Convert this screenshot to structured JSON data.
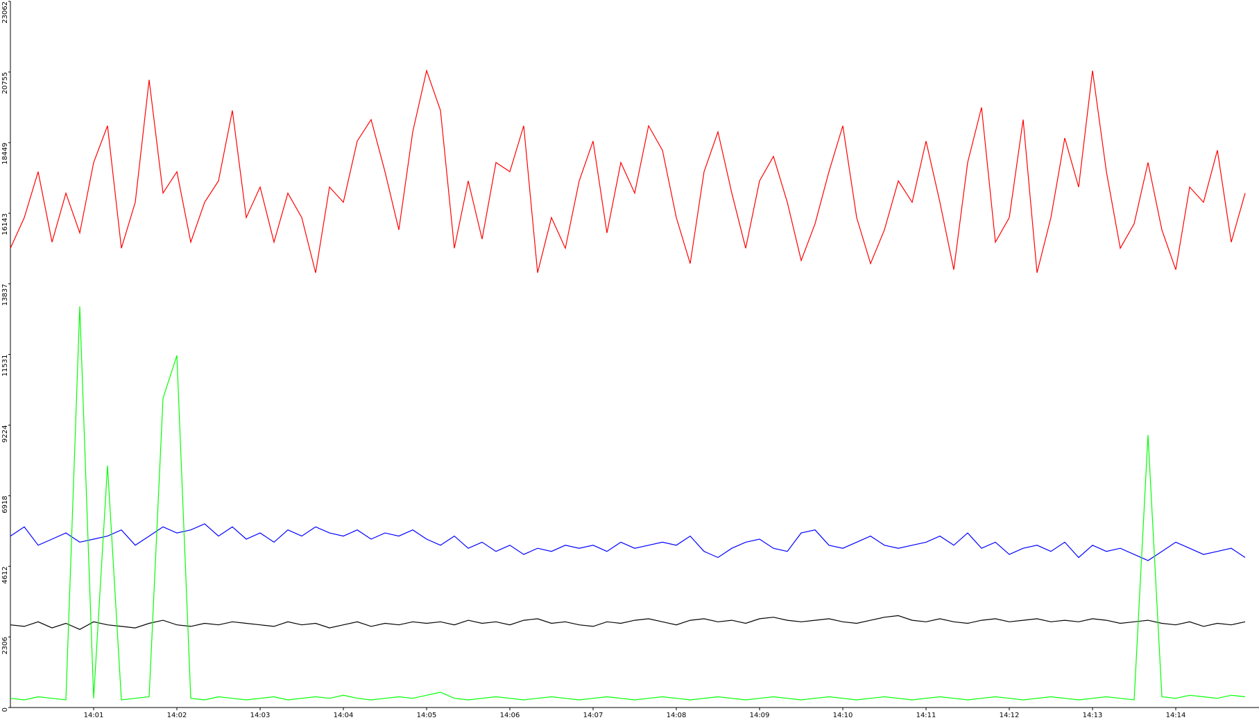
{
  "chart_data": {
    "type": "line",
    "categories": [
      null,
      null,
      null,
      null,
      null,
      null,
      "14:01",
      null,
      null,
      null,
      null,
      null,
      "14:02",
      null,
      null,
      null,
      null,
      null,
      "14:03",
      null,
      null,
      null,
      null,
      null,
      "14:04",
      null,
      null,
      null,
      null,
      null,
      "14:05",
      null,
      null,
      null,
      null,
      null,
      "14:06",
      null,
      null,
      null,
      null,
      null,
      "14:07",
      null,
      null,
      null,
      null,
      null,
      "14:08",
      null,
      null,
      null,
      null,
      null,
      "14:09",
      null,
      null,
      null,
      null,
      null,
      "14:10",
      null,
      null,
      null,
      null,
      null,
      "14:11",
      null,
      null,
      null,
      null,
      null,
      "14:12",
      null,
      null,
      null,
      null,
      null,
      "14:13",
      null,
      null,
      null,
      null,
      null,
      "14:14",
      null,
      null,
      null,
      null,
      null
    ],
    "series": [
      {
        "color": "#ff0000",
        "values": [
          15000,
          16000,
          17500,
          15200,
          16800,
          15500,
          17800,
          19000,
          15000,
          16500,
          20500,
          16800,
          17500,
          15200,
          16500,
          17200,
          19500,
          16000,
          17000,
          15200,
          16800,
          16000,
          14200,
          17000,
          16500,
          18500,
          19200,
          17500,
          15600,
          18800,
          20800,
          19500,
          15000,
          17200,
          15300,
          17800,
          17500,
          19000,
          14200,
          16000,
          15000,
          17200,
          18500,
          15500,
          17800,
          16800,
          19000,
          18200,
          16000,
          14500,
          17500,
          18800,
          16800,
          15000,
          17200,
          18000,
          16500,
          14600,
          15800,
          17500,
          19000,
          16000,
          14500,
          15600,
          17200,
          16500,
          18500,
          16500,
          14300,
          17800,
          19600,
          15200,
          16000,
          19200,
          14200,
          16000,
          18600,
          17000,
          20800,
          17500,
          15000,
          15800,
          17800,
          15600,
          14300,
          17000,
          16500,
          18200,
          15200,
          16800
        ]
      },
      {
        "color": "#0000ff",
        "values": [
          5600,
          5900,
          5300,
          5500,
          5700,
          5400,
          5500,
          5600,
          5800,
          5300,
          5600,
          5900,
          5700,
          5800,
          6000,
          5600,
          5900,
          5500,
          5700,
          5400,
          5800,
          5600,
          5900,
          5700,
          5600,
          5800,
          5500,
          5700,
          5600,
          5800,
          5500,
          5300,
          5600,
          5200,
          5400,
          5100,
          5300,
          5000,
          5200,
          5100,
          5300,
          5200,
          5300,
          5100,
          5400,
          5200,
          5300,
          5400,
          5300,
          5600,
          5100,
          4900,
          5200,
          5400,
          5500,
          5200,
          5100,
          5700,
          5800,
          5300,
          5200,
          5400,
          5600,
          5300,
          5200,
          5300,
          5400,
          5600,
          5300,
          5700,
          5200,
          5400,
          5000,
          5200,
          5300,
          5100,
          5400,
          4900,
          5300,
          5100,
          5200,
          5000,
          4800,
          5100,
          5400,
          5200,
          5000,
          5100,
          5200,
          4900
        ]
      },
      {
        "color": "#000000",
        "values": [
          2700,
          2650,
          2800,
          2600,
          2750,
          2550,
          2800,
          2700,
          2650,
          2600,
          2750,
          2850,
          2700,
          2650,
          2750,
          2700,
          2800,
          2750,
          2700,
          2650,
          2800,
          2700,
          2750,
          2600,
          2700,
          2800,
          2650,
          2750,
          2700,
          2800,
          2750,
          2800,
          2700,
          2850,
          2750,
          2800,
          2700,
          2850,
          2900,
          2750,
          2800,
          2700,
          2650,
          2800,
          2750,
          2850,
          2900,
          2800,
          2700,
          2850,
          2900,
          2800,
          2850,
          2750,
          2900,
          2950,
          2850,
          2800,
          2850,
          2900,
          2800,
          2750,
          2850,
          2950,
          3000,
          2850,
          2800,
          2900,
          2800,
          2750,
          2850,
          2900,
          2800,
          2850,
          2900,
          2800,
          2850,
          2800,
          2900,
          2850,
          2750,
          2800,
          2850,
          2750,
          2700,
          2800,
          2650,
          2750,
          2700,
          2800
        ]
      },
      {
        "color": "#00ff00",
        "values": [
          300,
          250,
          350,
          300,
          250,
          13100,
          300,
          7900,
          250,
          300,
          350,
          10100,
          11500,
          300,
          250,
          350,
          300,
          250,
          300,
          350,
          250,
          300,
          350,
          300,
          400,
          300,
          250,
          300,
          350,
          300,
          400,
          500,
          300,
          250,
          300,
          350,
          300,
          250,
          300,
          350,
          300,
          250,
          300,
          350,
          300,
          250,
          300,
          350,
          300,
          250,
          300,
          350,
          300,
          250,
          300,
          350,
          300,
          250,
          300,
          350,
          300,
          250,
          300,
          350,
          300,
          250,
          300,
          350,
          300,
          250,
          300,
          350,
          300,
          250,
          300,
          350,
          300,
          250,
          300,
          350,
          300,
          250,
          8900,
          350,
          300,
          400,
          350,
          300,
          400,
          350
        ]
      }
    ],
    "ylim": [
      0,
      23062
    ],
    "yticks": [
      0,
      2306,
      4612,
      6918,
      9224,
      11531,
      13837,
      16143,
      18449,
      20755,
      23062
    ]
  }
}
